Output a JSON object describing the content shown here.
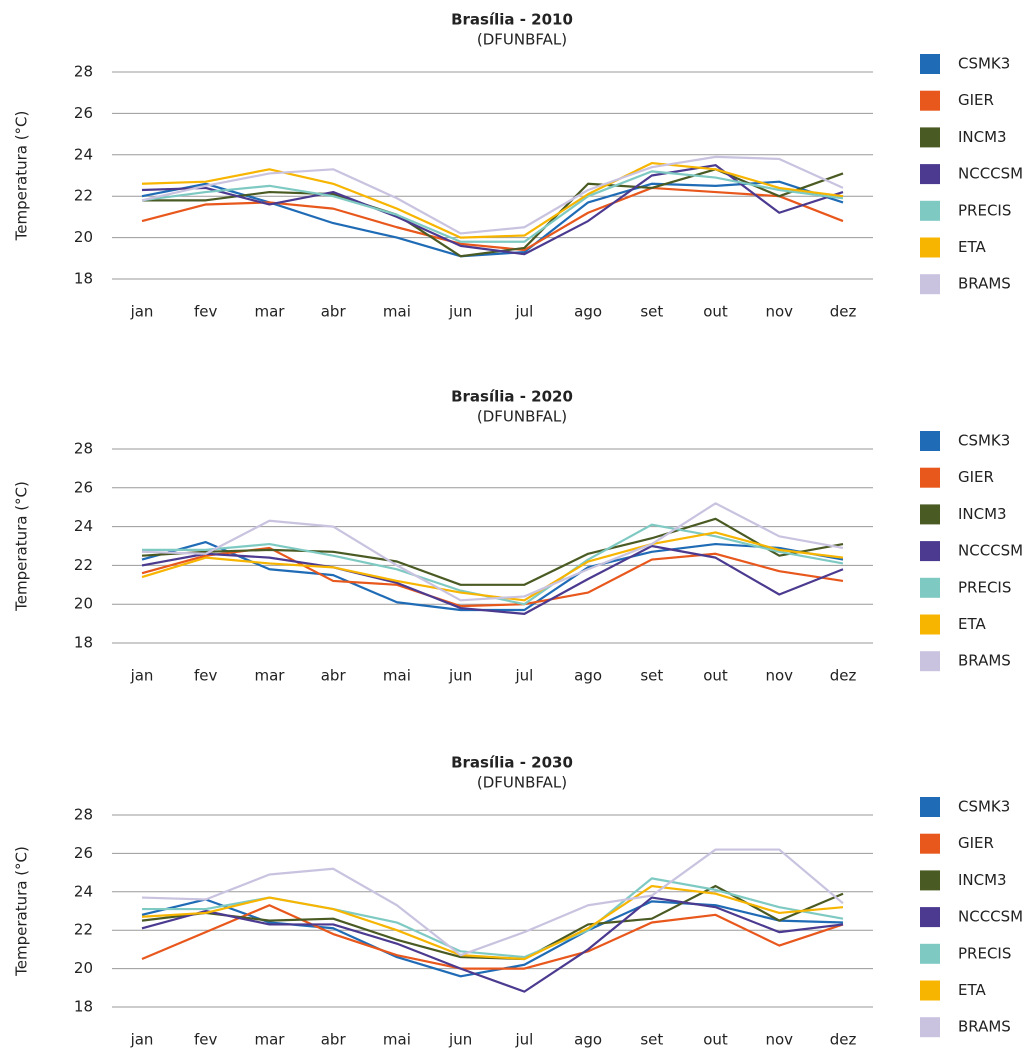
{
  "chart_data": [
    {
      "type": "line",
      "title": "Brasília - 2010",
      "subtitle": "(DFUNBFAL)",
      "y_label": "Temperatura (°C)",
      "categories": [
        "jan",
        "fev",
        "mar",
        "abr",
        "mai",
        "jun",
        "jul",
        "ago",
        "set",
        "out",
        "nov",
        "dez"
      ],
      "ylim": [
        18,
        28
      ],
      "yticks": [
        18,
        20,
        22,
        24,
        26,
        28
      ],
      "grid": true,
      "series": [
        {
          "name": "CSMK3",
          "color": "#1f6bb5",
          "values": [
            22.0,
            22.6,
            21.7,
            20.7,
            20.0,
            19.1,
            19.3,
            21.7,
            22.6,
            22.5,
            22.7,
            21.7
          ]
        },
        {
          "name": "GIER",
          "color": "#e8571c",
          "values": [
            20.8,
            21.6,
            21.7,
            21.4,
            20.5,
            19.7,
            19.4,
            21.2,
            22.4,
            22.2,
            22.0,
            20.8
          ]
        },
        {
          "name": "INCM3",
          "color": "#4a5a23",
          "values": [
            21.8,
            21.8,
            22.2,
            22.1,
            21.1,
            19.1,
            19.5,
            22.6,
            22.4,
            23.3,
            22.0,
            23.1
          ]
        },
        {
          "name": "NCCCSM",
          "color": "#4b3a8f",
          "values": [
            22.3,
            22.4,
            21.6,
            22.2,
            21.0,
            19.6,
            19.2,
            20.8,
            23.0,
            23.5,
            21.2,
            22.2
          ]
        },
        {
          "name": "PRECIS",
          "color": "#7ecac3",
          "values": [
            21.8,
            22.2,
            22.5,
            22.0,
            21.1,
            19.8,
            19.8,
            22.0,
            23.2,
            22.9,
            22.3,
            21.9
          ]
        },
        {
          "name": "ETA",
          "color": "#f7b500",
          "values": [
            22.6,
            22.7,
            23.3,
            22.6,
            21.4,
            20.0,
            20.1,
            22.1,
            23.6,
            23.3,
            22.4,
            22.0
          ]
        },
        {
          "name": "BRAMS",
          "color": "#c9c3e0",
          "values": [
            21.8,
            22.5,
            23.1,
            23.3,
            21.9,
            20.2,
            20.5,
            22.3,
            23.4,
            23.9,
            23.8,
            22.4
          ]
        }
      ]
    },
    {
      "type": "line",
      "title": "Brasília - 2020",
      "subtitle": "(DFUNBFAL)",
      "y_label": "Temperatura (°C)",
      "categories": [
        "jan",
        "fev",
        "mar",
        "abr",
        "mai",
        "jun",
        "jul",
        "ago",
        "set",
        "out",
        "nov",
        "dez"
      ],
      "ylim": [
        18,
        28
      ],
      "yticks": [
        18,
        20,
        22,
        24,
        26,
        28
      ],
      "grid": true,
      "series": [
        {
          "name": "CSMK3",
          "color": "#1f6bb5",
          "values": [
            22.3,
            23.2,
            21.8,
            21.5,
            20.1,
            19.7,
            19.7,
            21.9,
            22.7,
            23.1,
            22.9,
            22.3
          ]
        },
        {
          "name": "GIER",
          "color": "#e8571c",
          "values": [
            21.6,
            22.5,
            22.9,
            21.2,
            21.0,
            19.9,
            20.0,
            20.6,
            22.3,
            22.6,
            21.7,
            21.2
          ]
        },
        {
          "name": "INCM3",
          "color": "#4a5a23",
          "values": [
            22.5,
            22.7,
            22.8,
            22.7,
            22.2,
            21.0,
            21.0,
            22.6,
            23.4,
            24.4,
            22.5,
            23.1
          ]
        },
        {
          "name": "NCCCSM",
          "color": "#4b3a8f",
          "values": [
            22.0,
            22.6,
            22.4,
            21.9,
            21.1,
            19.8,
            19.5,
            21.3,
            23.0,
            22.4,
            20.5,
            21.8
          ]
        },
        {
          "name": "PRECIS",
          "color": "#7ecac3",
          "values": [
            22.8,
            22.8,
            23.1,
            22.5,
            21.8,
            20.7,
            20.0,
            22.3,
            24.1,
            23.5,
            22.7,
            22.1
          ]
        },
        {
          "name": "ETA",
          "color": "#f7b500",
          "values": [
            21.4,
            22.4,
            22.1,
            21.9,
            21.2,
            20.6,
            20.2,
            22.2,
            23.1,
            23.7,
            22.8,
            22.4
          ]
        },
        {
          "name": "BRAMS",
          "color": "#c9c3e0",
          "values": [
            22.7,
            22.6,
            24.3,
            24.0,
            22.0,
            20.2,
            20.4,
            21.8,
            23.1,
            25.2,
            23.5,
            22.9
          ]
        }
      ]
    },
    {
      "type": "line",
      "title": "Brasília - 2030",
      "subtitle": "(DFUNBFAL)",
      "y_label": "Temperatura (°C)",
      "categories": [
        "jan",
        "fev",
        "mar",
        "abr",
        "mai",
        "jun",
        "jul",
        "ago",
        "set",
        "out",
        "nov",
        "dez"
      ],
      "ylim": [
        18,
        28
      ],
      "yticks": [
        18,
        20,
        22,
        24,
        26,
        28
      ],
      "grid": true,
      "series": [
        {
          "name": "CSMK3",
          "color": "#1f6bb5",
          "values": [
            22.8,
            23.6,
            22.4,
            22.1,
            20.6,
            19.6,
            20.2,
            22.0,
            23.5,
            23.3,
            22.5,
            22.4
          ]
        },
        {
          "name": "GIER",
          "color": "#e8571c",
          "values": [
            20.5,
            21.9,
            23.3,
            21.8,
            20.7,
            20.0,
            20.0,
            20.9,
            22.4,
            22.8,
            21.2,
            22.3
          ]
        },
        {
          "name": "INCM3",
          "color": "#4a5a23",
          "values": [
            22.5,
            22.9,
            22.5,
            22.6,
            21.5,
            20.6,
            20.5,
            22.3,
            22.6,
            24.3,
            22.5,
            23.9
          ]
        },
        {
          "name": "NCCCSM",
          "color": "#4b3a8f",
          "values": [
            22.1,
            23.0,
            22.3,
            22.3,
            21.3,
            20.0,
            18.8,
            21.0,
            23.7,
            23.2,
            21.9,
            22.3
          ]
        },
        {
          "name": "PRECIS",
          "color": "#7ecac3",
          "values": [
            23.1,
            23.1,
            23.7,
            23.1,
            22.4,
            20.9,
            20.6,
            22.0,
            24.7,
            24.1,
            23.2,
            22.6
          ]
        },
        {
          "name": "ETA",
          "color": "#f7b500",
          "values": [
            22.7,
            22.9,
            23.7,
            23.1,
            22.0,
            20.7,
            20.5,
            22.1,
            24.3,
            23.9,
            22.9,
            23.2
          ]
        },
        {
          "name": "BRAMS",
          "color": "#c9c3e0",
          "values": [
            23.7,
            23.6,
            24.9,
            25.2,
            23.3,
            20.7,
            21.9,
            23.3,
            23.8,
            26.2,
            26.2,
            23.4
          ]
        }
      ]
    }
  ]
}
